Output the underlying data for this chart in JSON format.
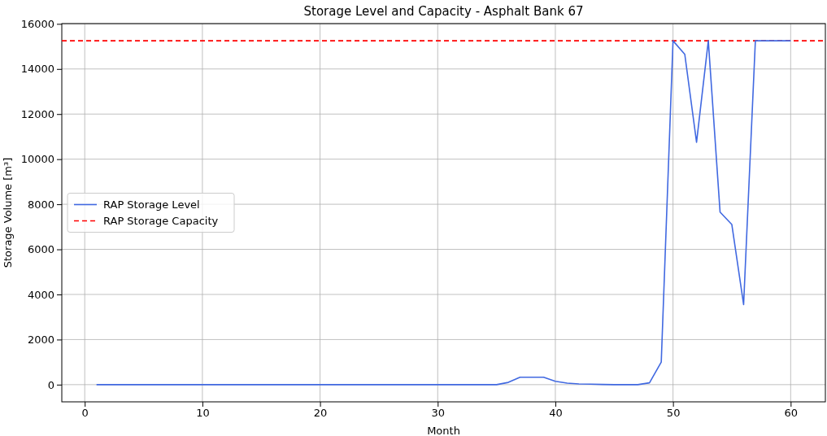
{
  "chart_data": {
    "type": "line",
    "title": "Storage Level and Capacity - Asphalt Bank 67",
    "xlabel": "Month",
    "ylabel": "Storage Volume [m³]",
    "x": [
      1,
      2,
      3,
      4,
      5,
      6,
      7,
      8,
      9,
      10,
      11,
      12,
      13,
      14,
      15,
      16,
      17,
      18,
      19,
      20,
      21,
      22,
      23,
      24,
      25,
      26,
      27,
      28,
      29,
      30,
      31,
      32,
      33,
      34,
      35,
      36,
      37,
      38,
      39,
      40,
      41,
      42,
      43,
      44,
      45,
      46,
      47,
      48,
      49,
      50,
      51,
      52,
      53,
      54,
      55,
      56,
      57,
      58,
      59,
      60
    ],
    "series": [
      {
        "name": "RAP Storage Level",
        "color": "#4169e1",
        "values": [
          0,
          0,
          0,
          0,
          0,
          0,
          0,
          0,
          0,
          0,
          0,
          0,
          0,
          0,
          0,
          0,
          0,
          0,
          0,
          0,
          0,
          0,
          0,
          0,
          0,
          0,
          0,
          0,
          0,
          0,
          0,
          0,
          0,
          0,
          0,
          100,
          330,
          330,
          330,
          150,
          70,
          30,
          20,
          10,
          0,
          0,
          0,
          80,
          1000,
          15250,
          14650,
          10750,
          15250,
          7650,
          7100,
          3550,
          15250,
          15250,
          15250,
          15250
        ]
      }
    ],
    "ref_lines": [
      {
        "axis": "y",
        "value": 15250,
        "label": "RAP Storage Capacity",
        "color": "#ff0000",
        "line_style": "dashed"
      }
    ],
    "xlim": [
      -1.95,
      62.95
    ],
    "ylim": [
      -762.5,
      16012.5
    ],
    "xticks": [
      0,
      10,
      20,
      30,
      40,
      50,
      60
    ],
    "yticks": [
      0,
      2000,
      4000,
      6000,
      8000,
      10000,
      12000,
      14000,
      16000
    ],
    "grid": true,
    "legend": "left",
    "line_style": "solid",
    "marker": "none"
  }
}
